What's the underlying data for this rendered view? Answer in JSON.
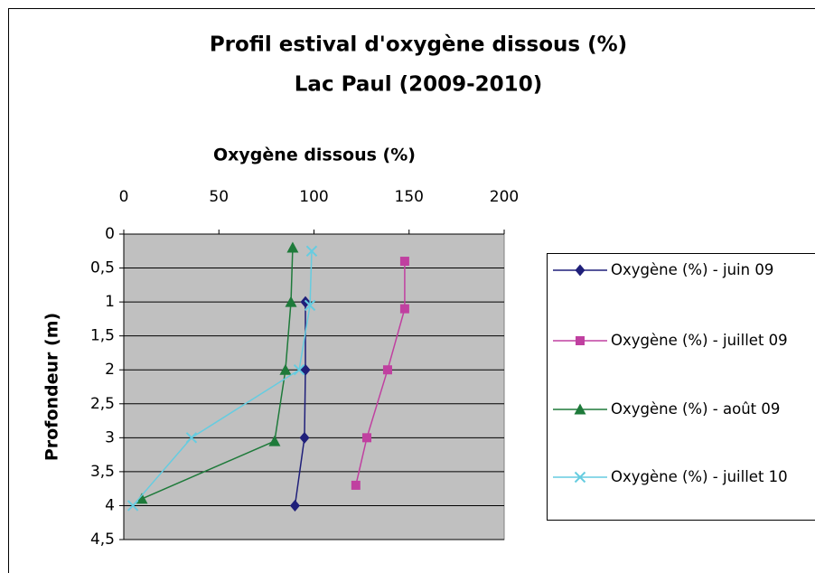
{
  "chart_data": {
    "type": "line",
    "title": [
      "Profil estival d'oxygène dissous (%)",
      "Lac Paul (2009-2010)"
    ],
    "x_label": "Oxygène dissous (%)",
    "y_label": "Profondeur (m)",
    "xlim": [
      0,
      200
    ],
    "xticks": [
      0,
      50,
      100,
      150,
      200
    ],
    "ylim": [
      0,
      4.5
    ],
    "y_inverted": true,
    "yticks": [
      0,
      {
        "value": 0.5,
        "label": "0,5"
      },
      1,
      {
        "value": 1.5,
        "label": "1,5"
      },
      2,
      {
        "value": 2.5,
        "label": "2,5"
      },
      3,
      {
        "value": 3.5,
        "label": "3,5"
      },
      4,
      {
        "value": 4.5,
        "label": "4,5"
      }
    ],
    "grid": true,
    "legend": "right",
    "series": [
      {
        "name": "Oxygène (%) - juin 09",
        "color": "#1f1f7a",
        "marker": "diamond",
        "x": [
          95.5,
          95.5,
          95,
          90
        ],
        "values": [
          1.0,
          2.0,
          3.0,
          4.0
        ]
      },
      {
        "name": "Oxygène (%) - juillet 09",
        "color": "#c040a0",
        "marker": "square",
        "x": [
          147.7,
          147.7,
          138.7,
          127.8,
          122
        ],
        "values": [
          0.4,
          1.1,
          2.0,
          3.0,
          3.7
        ]
      },
      {
        "name": "Oxygène (%) - août 09",
        "color": "#1e7a3a",
        "marker": "triangle",
        "x": [
          88.8,
          87.9,
          85,
          79.3,
          9.5
        ],
        "values": [
          0.2,
          1.0,
          2.0,
          3.05,
          3.9
        ]
      },
      {
        "name": "Oxygène (%) - juillet 10",
        "color": "#66cce0",
        "marker": "x",
        "x": [
          98.8,
          97.9,
          92.2,
          35.6,
          4.8
        ],
        "values": [
          0.25,
          1.05,
          2.0,
          3.0,
          4.0
        ]
      }
    ]
  }
}
